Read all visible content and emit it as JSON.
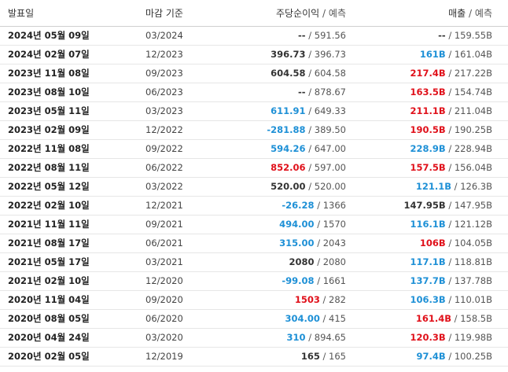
{
  "header": {
    "date": "발표일",
    "period": "마감 기준",
    "eps": "주당순이익",
    "revenue": "매출",
    "forecast": "예측",
    "sep": "/"
  },
  "rows": [
    {
      "date": "2024년 05월 09일",
      "period": "03/2024",
      "eps_actual": "--",
      "eps_class": "",
      "eps_forecast": "591.56",
      "rev_actual": "--",
      "rev_class": "",
      "rev_forecast": "159.55B"
    },
    {
      "date": "2024년 02월 07일",
      "period": "12/2023",
      "eps_actual": "396.73",
      "eps_class": "",
      "eps_forecast": "396.73",
      "rev_actual": "161B",
      "rev_class": "pos",
      "rev_forecast": "161.04B"
    },
    {
      "date": "2023년 11월 08일",
      "period": "09/2023",
      "eps_actual": "604.58",
      "eps_class": "",
      "eps_forecast": "604.58",
      "rev_actual": "217.4B",
      "rev_class": "neg",
      "rev_forecast": "217.22B"
    },
    {
      "date": "2023년 08월 10일",
      "period": "06/2023",
      "eps_actual": "--",
      "eps_class": "",
      "eps_forecast": "878.67",
      "rev_actual": "163.5B",
      "rev_class": "neg",
      "rev_forecast": "154.74B"
    },
    {
      "date": "2023년 05월 11일",
      "period": "03/2023",
      "eps_actual": "611.91",
      "eps_class": "pos",
      "eps_forecast": "649.33",
      "rev_actual": "211.1B",
      "rev_class": "neg",
      "rev_forecast": "211.04B"
    },
    {
      "date": "2023년 02월 09일",
      "period": "12/2022",
      "eps_actual": "-281.88",
      "eps_class": "pos",
      "eps_forecast": "389.50",
      "rev_actual": "190.5B",
      "rev_class": "neg",
      "rev_forecast": "190.25B"
    },
    {
      "date": "2022년 11월 08일",
      "period": "09/2022",
      "eps_actual": "594.26",
      "eps_class": "pos",
      "eps_forecast": "647.00",
      "rev_actual": "228.9B",
      "rev_class": "pos",
      "rev_forecast": "228.94B"
    },
    {
      "date": "2022년 08월 11일",
      "period": "06/2022",
      "eps_actual": "852.06",
      "eps_class": "neg",
      "eps_forecast": "597.00",
      "rev_actual": "157.5B",
      "rev_class": "neg",
      "rev_forecast": "156.04B"
    },
    {
      "date": "2022년 05월 12일",
      "period": "03/2022",
      "eps_actual": "520.00",
      "eps_class": "",
      "eps_forecast": "520.00",
      "rev_actual": "121.1B",
      "rev_class": "pos",
      "rev_forecast": "126.3B"
    },
    {
      "date": "2022년 02월 10일",
      "period": "12/2021",
      "eps_actual": "-26.28",
      "eps_class": "pos",
      "eps_forecast": "1366",
      "rev_actual": "147.95B",
      "rev_class": "",
      "rev_forecast": "147.95B"
    },
    {
      "date": "2021년 11월 11일",
      "period": "09/2021",
      "eps_actual": "494.00",
      "eps_class": "pos",
      "eps_forecast": "1570",
      "rev_actual": "116.1B",
      "rev_class": "pos",
      "rev_forecast": "121.12B"
    },
    {
      "date": "2021년 08월 17일",
      "period": "06/2021",
      "eps_actual": "315.00",
      "eps_class": "pos",
      "eps_forecast": "2043",
      "rev_actual": "106B",
      "rev_class": "neg",
      "rev_forecast": "104.05B"
    },
    {
      "date": "2021년 05월 17일",
      "period": "03/2021",
      "eps_actual": "2080",
      "eps_class": "",
      "eps_forecast": "2080",
      "rev_actual": "117.1B",
      "rev_class": "pos",
      "rev_forecast": "118.81B"
    },
    {
      "date": "2021년 02월 10일",
      "period": "12/2020",
      "eps_actual": "-99.08",
      "eps_class": "pos",
      "eps_forecast": "1661",
      "rev_actual": "137.7B",
      "rev_class": "pos",
      "rev_forecast": "137.78B"
    },
    {
      "date": "2020년 11월 04일",
      "period": "09/2020",
      "eps_actual": "1503",
      "eps_class": "neg",
      "eps_forecast": "282",
      "rev_actual": "106.3B",
      "rev_class": "pos",
      "rev_forecast": "110.01B"
    },
    {
      "date": "2020년 08월 05일",
      "period": "06/2020",
      "eps_actual": "304.00",
      "eps_class": "pos",
      "eps_forecast": "415",
      "rev_actual": "161.4B",
      "rev_class": "neg",
      "rev_forecast": "158.5B"
    },
    {
      "date": "2020년 04월 24일",
      "period": "03/2020",
      "eps_actual": "310",
      "eps_class": "pos",
      "eps_forecast": "894.65",
      "rev_actual": "120.3B",
      "rev_class": "neg",
      "rev_forecast": "119.98B"
    },
    {
      "date": "2020년 02월 05일",
      "period": "12/2019",
      "eps_actual": "165",
      "eps_class": "",
      "eps_forecast": "165",
      "rev_actual": "97.4B",
      "rev_class": "pos",
      "rev_forecast": "100.25B"
    }
  ],
  "colors": {
    "beat": "#1e90d6",
    "miss": "#e0101a",
    "neutral": "#333333"
  }
}
